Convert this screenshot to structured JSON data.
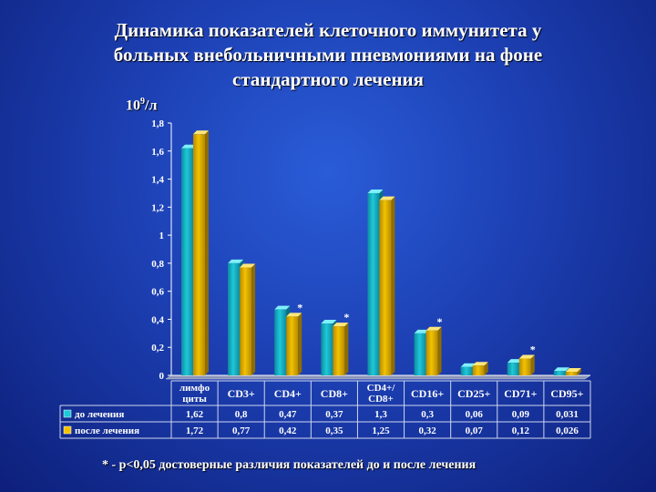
{
  "title_lines": [
    "Динамика показателей клеточного иммунитета у",
    "больных внебольничными пневмониями на фоне",
    "стандартного лечения"
  ],
  "y_unit": {
    "base": "10",
    "exp": "9",
    "tail": "/л"
  },
  "footnote": "* - p<0,05 достоверные различия показателей до и после лечения",
  "colors": {
    "before": "#1ec8d8",
    "after": "#f2c200",
    "background": "#1c3fb2"
  },
  "chart_data": {
    "type": "bar",
    "categories": [
      "лимфо циты",
      "CD3+",
      "CD4+",
      "CD8+",
      "CD4+/ CD8+",
      "CD16+",
      "CD25+",
      "CD71+",
      "CD95+"
    ],
    "category_label_lines": [
      [
        "лимфо",
        "циты"
      ],
      [
        "CD3+"
      ],
      [
        "CD4+"
      ],
      [
        "CD8+"
      ],
      [
        "CD4+/",
        "CD8+"
      ],
      [
        "CD16+"
      ],
      [
        "CD25+"
      ],
      [
        "CD71+"
      ],
      [
        "CD95+"
      ]
    ],
    "series": [
      {
        "name": "до лечения",
        "values": [
          1.62,
          0.8,
          0.47,
          0.37,
          1.3,
          0.3,
          0.06,
          0.09,
          0.031
        ],
        "labels": [
          "1,62",
          "0,8",
          "0,47",
          "0,37",
          "1,3",
          "0,3",
          "0,06",
          "0,09",
          "0,031"
        ]
      },
      {
        "name": "после лечения",
        "values": [
          1.72,
          0.77,
          0.42,
          0.35,
          1.25,
          0.32,
          0.07,
          0.12,
          0.026
        ],
        "labels": [
          "1,72",
          "0,77",
          "0,42",
          "0,35",
          "1,25",
          "0,32",
          "0,07",
          "0,12",
          "0,026"
        ]
      }
    ],
    "significant": [
      false,
      false,
      true,
      true,
      false,
      true,
      false,
      true,
      false
    ],
    "significance_mark": "*",
    "ylim": [
      0,
      1.8
    ],
    "yticks": [
      0,
      0.2,
      0.4,
      0.6,
      0.8,
      1,
      1.2,
      1.4,
      1.6,
      1.8
    ],
    "ytick_labels": [
      "0",
      "0,2",
      "0,4",
      "0,6",
      "0,8",
      "1",
      "1,2",
      "1,4",
      "1,6",
      "1,8"
    ],
    "legend_placement": "data-table",
    "grid": false
  }
}
